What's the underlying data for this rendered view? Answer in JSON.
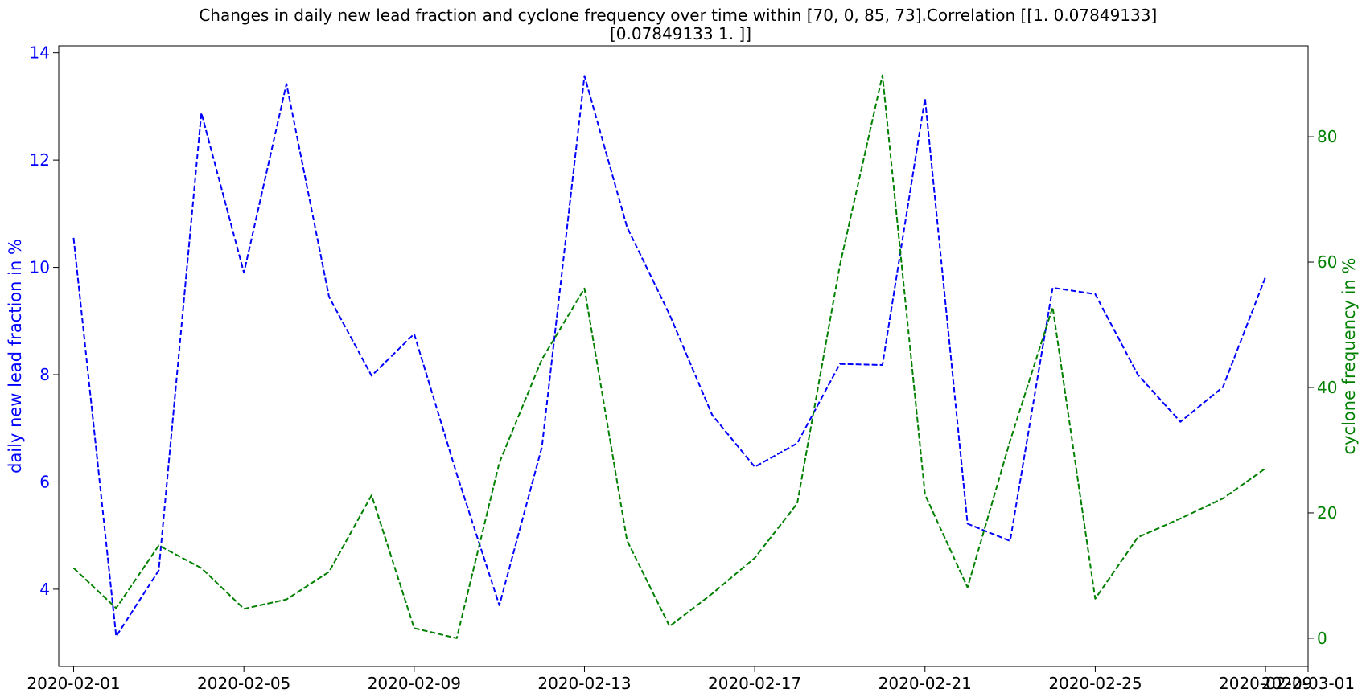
{
  "chart_data": {
    "type": "line",
    "title": "Changes in daily new lead fraction and cyclone frequency over time within [70, 0, 85, 73].Correlation [[1.         0.07849133]\n [0.07849133 1.        ]]",
    "xlabel": "",
    "x_ticks": [
      "2020-02-01",
      "2020-02-05",
      "2020-02-09",
      "2020-02-13",
      "2020-02-17",
      "2020-02-21",
      "2020-02-25",
      "2020-02-29",
      "2020-03-01"
    ],
    "xlim": [
      "2020-01-31T15:36",
      "2020-03-01"
    ],
    "x": [
      "2020-02-01",
      "2020-02-02",
      "2020-02-03",
      "2020-02-04",
      "2020-02-05",
      "2020-02-06",
      "2020-02-07",
      "2020-02-08",
      "2020-02-09",
      "2020-02-10",
      "2020-02-11",
      "2020-02-12",
      "2020-02-13",
      "2020-02-14",
      "2020-02-15",
      "2020-02-16",
      "2020-02-17",
      "2020-02-18",
      "2020-02-19",
      "2020-02-20",
      "2020-02-21",
      "2020-02-22",
      "2020-02-23",
      "2020-02-24",
      "2020-02-25",
      "2020-02-26",
      "2020-02-27",
      "2020-02-28",
      "2020-02-29"
    ],
    "left_axis": {
      "label": "daily new lead fraction in %",
      "color": "#0000ff",
      "ticks": [
        "4",
        "6",
        "8",
        "10",
        "12",
        "14"
      ],
      "ylim": [
        2.56,
        14.13
      ]
    },
    "right_axis": {
      "label": "cyclone frequency in %",
      "color": "#008000",
      "ticks": [
        "0",
        "20",
        "40",
        "60",
        "80"
      ],
      "ylim": [
        -4.5,
        94.5
      ]
    },
    "series": [
      {
        "axis": "left",
        "color": "#0000ff",
        "linestyle": "dashed",
        "values": [
          10.55,
          3.12,
          4.35,
          12.88,
          9.9,
          13.42,
          9.45,
          7.98,
          8.76,
          6.15,
          3.7,
          6.65,
          13.57,
          10.75,
          9.12,
          7.25,
          6.28,
          6.72,
          8.2,
          8.18,
          13.15,
          5.22,
          4.9,
          9.62,
          9.5,
          8.0,
          7.12,
          7.77,
          9.82
        ]
      },
      {
        "axis": "right",
        "color": "#008000",
        "linestyle": "dashed",
        "values": [
          11.2,
          4.8,
          14.8,
          11.2,
          4.7,
          6.2,
          10.6,
          22.8,
          1.6,
          0.0,
          28.0,
          44.5,
          55.8,
          15.6,
          1.9,
          7.1,
          12.8,
          21.5,
          59.5,
          89.8,
          22.9,
          8.1,
          31.5,
          52.8,
          6.3,
          16.1,
          19.1,
          22.3,
          27.1
        ]
      }
    ],
    "grid": false,
    "legend": "none"
  }
}
